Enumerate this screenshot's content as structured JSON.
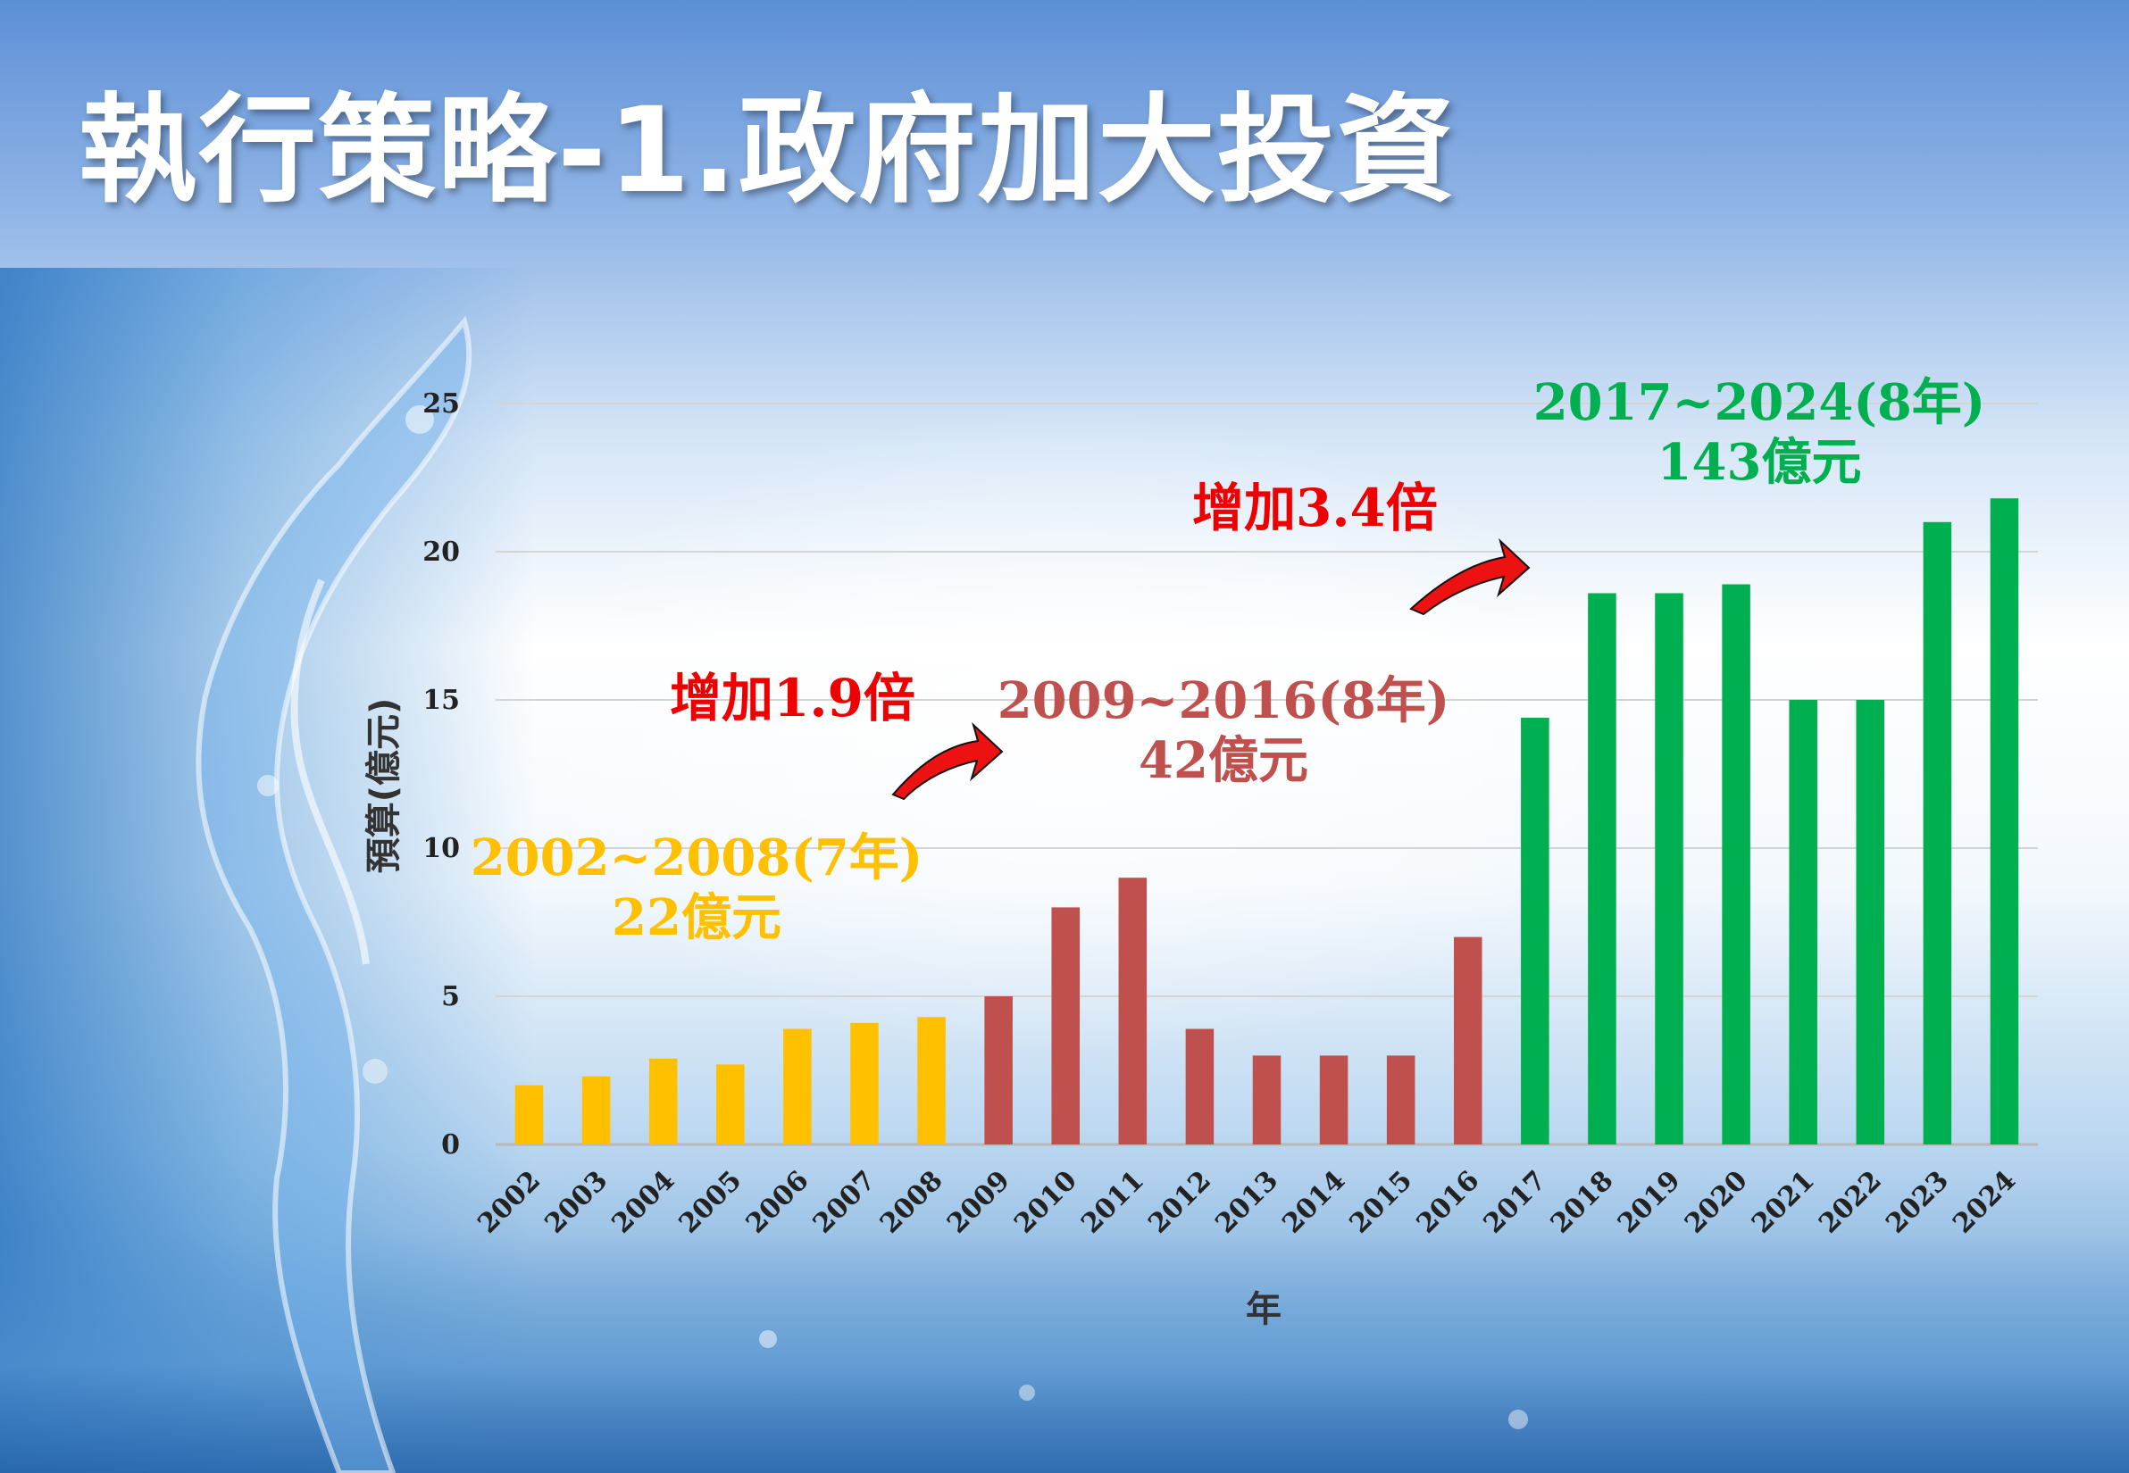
{
  "title": "執行策略-1.政府加大投資",
  "chart_data": {
    "type": "bar",
    "xlabel": "年",
    "ylabel": "預算(億元)",
    "ylim": [
      0,
      25
    ],
    "yticks": [
      0,
      5,
      10,
      15,
      20,
      25
    ],
    "grid": true,
    "categories": [
      "2002",
      "2003",
      "2004",
      "2005",
      "2006",
      "2007",
      "2008",
      "2009",
      "2010",
      "2011",
      "2012",
      "2013",
      "2014",
      "2015",
      "2016",
      "2017",
      "2018",
      "2019",
      "2020",
      "2021",
      "2022",
      "2023",
      "2024"
    ],
    "values": [
      2.0,
      2.3,
      2.9,
      2.7,
      3.9,
      4.1,
      4.3,
      5.0,
      8.0,
      9.0,
      3.9,
      3.0,
      3.0,
      3.0,
      7.0,
      14.4,
      18.6,
      18.6,
      18.9,
      15.0,
      15.0,
      21.0,
      21.8
    ],
    "colors": [
      "#ffc000",
      "#ffc000",
      "#ffc000",
      "#ffc000",
      "#ffc000",
      "#ffc000",
      "#ffc000",
      "#c0504d",
      "#c0504d",
      "#c0504d",
      "#c0504d",
      "#c0504d",
      "#c0504d",
      "#c0504d",
      "#c0504d",
      "#00b050",
      "#00b050",
      "#00b050",
      "#00b050",
      "#00b050",
      "#00b050",
      "#00b050",
      "#00b050"
    ],
    "annotations": {
      "period1": {
        "range": "2002~2008(7年)",
        "total": "22億元",
        "color": "#ffc000"
      },
      "period2": {
        "range": "2009~2016(8年)",
        "total": "42億元",
        "color": "#c0504d"
      },
      "period3": {
        "range": "2017~2024(8年)",
        "total": "143億元",
        "color": "#00b050"
      },
      "increase1": {
        "text": "增加1.9倍",
        "color": "#ee0000"
      },
      "increase2": {
        "text": "增加3.4倍",
        "color": "#ee0000"
      }
    }
  }
}
